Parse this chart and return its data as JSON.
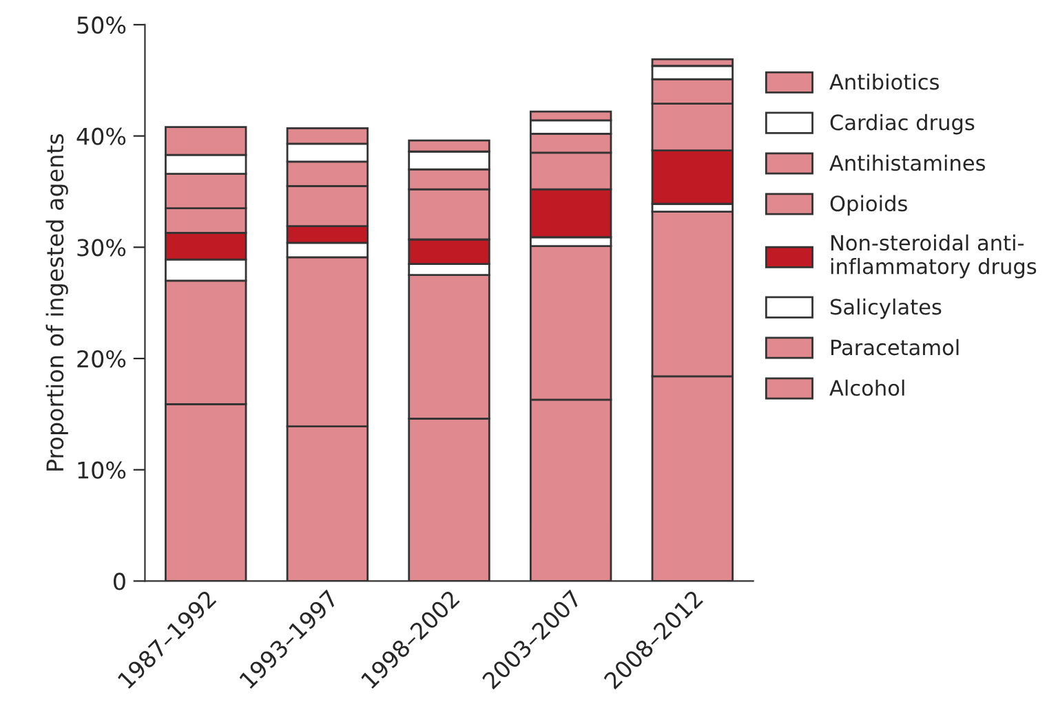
{
  "chart_data": {
    "type": "bar",
    "stacked": true,
    "ylabel": "Proportion of ingested agents",
    "categories": [
      "1987–1992",
      "1993–1997",
      "1998–2002",
      "2003–2007",
      "2008–2012"
    ],
    "series": [
      {
        "name": "Alcohol",
        "color": "#e0898e",
        "values": [
          15.9,
          13.9,
          14.6,
          16.3,
          18.4
        ]
      },
      {
        "name": "Paracetamol",
        "color": "#e0898e",
        "values": [
          11.1,
          15.2,
          12.9,
          13.8,
          14.8
        ]
      },
      {
        "name": "Salicylates",
        "color": "#ffffff",
        "values": [
          1.9,
          1.3,
          1.0,
          0.8,
          0.7
        ]
      },
      {
        "name": "Non-steroidal anti-\ninflammatory drugs",
        "color": "#c01a24",
        "values": [
          2.4,
          1.5,
          2.2,
          4.3,
          4.8
        ]
      },
      {
        "name": "Opioids",
        "color": "#e0898e",
        "values": [
          2.2,
          3.6,
          4.5,
          3.3,
          4.2
        ]
      },
      {
        "name": "Antihistamines",
        "color": "#e0898e",
        "values": [
          3.1,
          2.2,
          1.8,
          1.7,
          2.2
        ]
      },
      {
        "name": "Cardiac drugs",
        "color": "#ffffff",
        "values": [
          1.7,
          1.6,
          1.6,
          1.2,
          1.2
        ]
      },
      {
        "name": "Antibiotics",
        "color": "#e0898e",
        "values": [
          2.5,
          1.4,
          1.0,
          0.8,
          0.6
        ]
      }
    ],
    "ylim": [
      0,
      50
    ],
    "yticks": [
      0,
      {
        "value": 10,
        "label": "10%"
      },
      {
        "value": 20,
        "label": "20%"
      },
      {
        "value": 30,
        "label": "30%"
      },
      {
        "value": 40,
        "label": "40%"
      },
      {
        "value": 50,
        "label": "50%"
      }
    ],
    "legend": "right",
    "grid": false
  }
}
